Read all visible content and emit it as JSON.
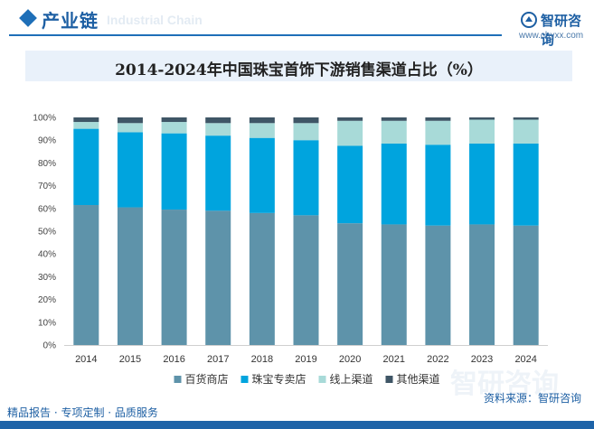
{
  "header": {
    "title": "产业链",
    "watermark": "Industrial Chain"
  },
  "brand": {
    "name": "智研咨询",
    "url": "www.chyxx.com"
  },
  "footer": {
    "left": "精品报告 · 专项定制 · 品质服务",
    "source": "资料来源：智研咨询",
    "watermark": "智研咨询"
  },
  "colors": {
    "department": "#5e93aa",
    "jewelry": "#00a4de",
    "online": "#a8dad8",
    "other": "#3f5666",
    "brand": "#1d5fa3"
  },
  "chart_data": {
    "type": "bar",
    "stacked": true,
    "title": "2014-2024年中国珠宝首饰下游销售渠道占比（%）",
    "categories": [
      "2014",
      "2015",
      "2016",
      "2017",
      "2018",
      "2019",
      "2020",
      "2021",
      "2022",
      "2023",
      "2024"
    ],
    "ylim": [
      0,
      100
    ],
    "yticks": [
      "0%",
      "10%",
      "20%",
      "30%",
      "40%",
      "50%",
      "60%",
      "70%",
      "80%",
      "90%",
      "100%"
    ],
    "legend_position": "bottom",
    "series": [
      {
        "name": "百货商店",
        "values": [
          61.5,
          60.5,
          59.5,
          59,
          58,
          57,
          53.5,
          53,
          52.5,
          53,
          52.5
        ]
      },
      {
        "name": "珠宝专卖店",
        "values": [
          33.5,
          33,
          33.5,
          33,
          33,
          33,
          34,
          35.5,
          35.5,
          35.5,
          36
        ]
      },
      {
        "name": "线上渠道",
        "values": [
          3,
          4,
          5,
          5.5,
          6.5,
          7.5,
          11,
          10,
          10.5,
          10.5,
          10.5
        ]
      },
      {
        "name": "其他渠道",
        "values": [
          2,
          2.5,
          2,
          2.5,
          2.5,
          2.5,
          1.5,
          1.5,
          1.5,
          1,
          1
        ]
      }
    ]
  }
}
